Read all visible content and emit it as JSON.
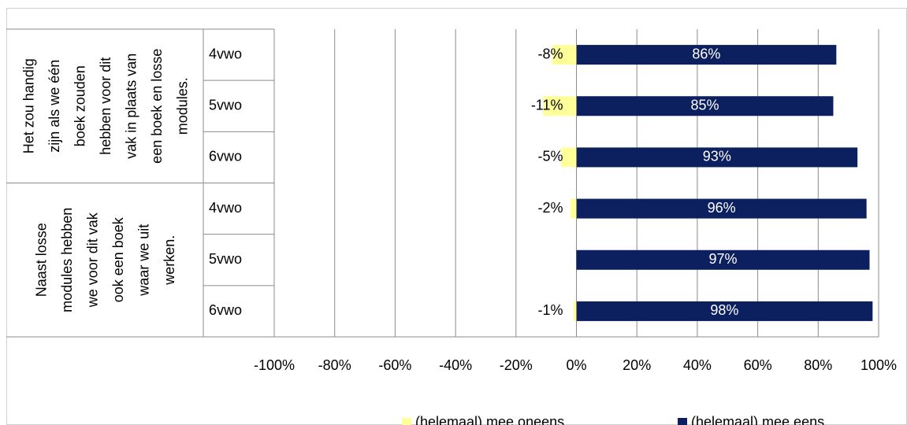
{
  "chart_data": {
    "type": "diverging-bar",
    "groups": [
      {
        "label_lines": [
          "Het zou handig",
          "zijn als we één",
          "boek zouden",
          "hebben voor dit",
          "vak in plaats van",
          "een boek en losse",
          "modules."
        ],
        "categories": [
          "4vwo",
          "5vwo",
          "6vwo"
        ]
      },
      {
        "label_lines": [
          "Naast losse",
          "modules hebben",
          "we voor dit vak",
          "ook een boek",
          "waar we uit",
          "werken."
        ],
        "categories": [
          "4vwo",
          "5vwo",
          "6vwo"
        ]
      }
    ],
    "series": [
      {
        "name": "(helemaal) mee oneens",
        "color": "#ffff99",
        "values": [
          -8,
          -11,
          -5,
          -2,
          null,
          -1
        ],
        "value_labels": [
          "-8%",
          "-11%",
          "-5%",
          "-2%",
          null,
          "-1%"
        ]
      },
      {
        "name": "(helemaal) mee eens",
        "color": "#0c1f5e",
        "values": [
          86,
          85,
          93,
          96,
          97,
          98
        ],
        "value_labels": [
          "86%",
          "85%",
          "93%",
          "96%",
          "97%",
          "98%"
        ]
      }
    ],
    "xlim": [
      -100,
      100
    ],
    "xticks": [
      {
        "value": -100,
        "label": "-100%"
      },
      {
        "value": -80,
        "label": "-80%"
      },
      {
        "value": -60,
        "label": "-60%"
      },
      {
        "value": -40,
        "label": "-40%"
      },
      {
        "value": -20,
        "label": "-20%"
      },
      {
        "value": 0,
        "label": "0%"
      },
      {
        "value": 20,
        "label": "20%"
      },
      {
        "value": 40,
        "label": "40%"
      },
      {
        "value": 60,
        "label": "60%"
      },
      {
        "value": 80,
        "label": "80%"
      },
      {
        "value": 100,
        "label": "100%"
      }
    ],
    "grid": true,
    "legend": "bottom"
  }
}
